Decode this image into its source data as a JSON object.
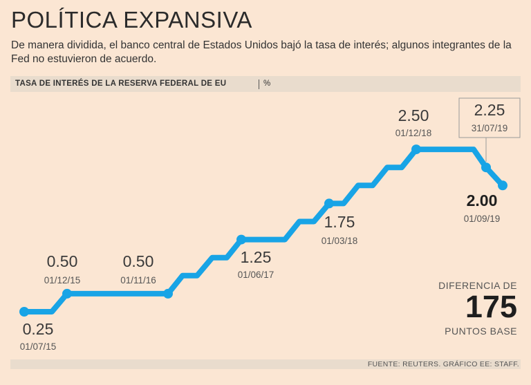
{
  "title": "POLÍTICA EXPANSIVA",
  "subtitle": "De manera dividida, el banco central de Estados Unidos bajó la tasa de interés; algunos integrantes de la Fed no estuvieron de acuerdo.",
  "header": {
    "label": "TASA DE INTERÉS DE LA  RESERVA FEDERAL DE EU",
    "unit": "%"
  },
  "diff": {
    "top": "DIFERENCIA DE",
    "value": "175",
    "bottom": "PUNTOS BASE"
  },
  "source": "FUENTE: REUTERS. GRÁFICO EE: STAFF.",
  "colors": {
    "line": "#18a4e6",
    "background": "#fbe6d3",
    "bar": "#e9dccd"
  },
  "chart_data": {
    "type": "line",
    "title": "TASA DE INTERÉS DE LA RESERVA FEDERAL DE EU",
    "ylabel": "%",
    "ylim": [
      0.25,
      2.5
    ],
    "series": [
      {
        "name": "Tasa de interés",
        "steps": [
          {
            "value": 0.25
          },
          {
            "value": 0.25
          },
          {
            "value": 0.5
          },
          {
            "value": 0.5
          },
          {
            "value": 0.75
          },
          {
            "value": 0.75
          },
          {
            "value": 1.0
          },
          {
            "value": 1.0
          },
          {
            "value": 1.25
          },
          {
            "value": 1.25
          },
          {
            "value": 1.5
          },
          {
            "value": 1.5
          },
          {
            "value": 1.75
          },
          {
            "value": 1.75
          },
          {
            "value": 2.0
          },
          {
            "value": 2.0
          },
          {
            "value": 2.25
          },
          {
            "value": 2.25
          },
          {
            "value": 2.5
          },
          {
            "value": 2.5
          },
          {
            "value": 2.25
          },
          {
            "value": 2.0
          }
        ]
      }
    ],
    "annotations": [
      {
        "value": "0.25",
        "date": "01/07/15",
        "bold": false
      },
      {
        "value": "0.50",
        "date": "01/12/15",
        "bold": false
      },
      {
        "value": "0.50",
        "date": "01/11/16",
        "bold": false
      },
      {
        "value": "1.25",
        "date": "01/06/17",
        "bold": false
      },
      {
        "value": "1.75",
        "date": "01/03/18",
        "bold": false
      },
      {
        "value": "2.50",
        "date": "01/12/18",
        "bold": false
      },
      {
        "value": "2.25",
        "date": "31/07/19",
        "bold": false,
        "boxed": true
      },
      {
        "value": "2.00",
        "date": "01/09/19",
        "bold": true
      }
    ]
  }
}
